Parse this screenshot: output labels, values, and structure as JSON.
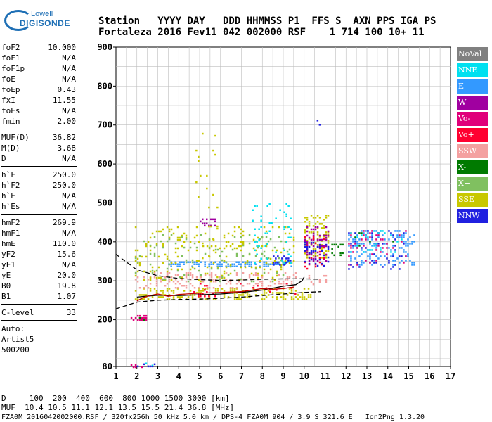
{
  "logo": {
    "brand": "Lowell",
    "sub": "DIGISONDE"
  },
  "header": {
    "line1": "Station   YYYY DAY   DDD HHMMSS P1  FFS S  AXN PPS IGA PS",
    "line2": "Fortaleza 2016 Fev11 042 002000 RSF    1 714 100 10+ 11"
  },
  "params": {
    "group1": [
      {
        "label": "foF2",
        "value": "10.000"
      },
      {
        "label": "foF1",
        "value": "N/A"
      },
      {
        "label": "foF1p",
        "value": "N/A"
      },
      {
        "label": "foE",
        "value": "N/A"
      },
      {
        "label": "foEp",
        "value": "0.43"
      },
      {
        "label": "fxI",
        "value": "11.55"
      },
      {
        "label": "foEs",
        "value": "N/A"
      },
      {
        "label": "fmin",
        "value": "2.00"
      }
    ],
    "group2": [
      {
        "label": "MUF(D)",
        "value": "36.82"
      },
      {
        "label": "M(D)",
        "value": "3.68"
      },
      {
        "label": "D",
        "value": "N/A"
      }
    ],
    "group3": [
      {
        "label": "h`F",
        "value": "250.0"
      },
      {
        "label": "h`F2",
        "value": "250.0"
      },
      {
        "label": "h`E",
        "value": "N/A"
      },
      {
        "label": "h`Es",
        "value": "N/A"
      }
    ],
    "group4": [
      {
        "label": "hmF2",
        "value": "269.9"
      },
      {
        "label": "hmF1",
        "value": "N/A"
      },
      {
        "label": "hmE",
        "value": "110.0"
      },
      {
        "label": "yF2",
        "value": "15.6"
      },
      {
        "label": "yF1",
        "value": "N/A"
      },
      {
        "label": "yE",
        "value": "20.0"
      },
      {
        "label": "B0",
        "value": "19.8"
      },
      {
        "label": "B1",
        "value": "1.07"
      }
    ],
    "group5": [
      {
        "label": "C-level",
        "value": "33"
      }
    ],
    "auto_lines": [
      "Auto:",
      "Artist5",
      "500200"
    ]
  },
  "legend": [
    {
      "label": "NoVal",
      "color": "#808080"
    },
    {
      "label": "NNE",
      "color": "#00e0f0"
    },
    {
      "label": "E",
      "color": "#3399ff"
    },
    {
      "label": "W",
      "color": "#a000a0"
    },
    {
      "label": "Vo-",
      "color": "#e0007a"
    },
    {
      "label": "Vo+",
      "color": "#ff0030"
    },
    {
      "label": "SSW",
      "color": "#f4a0a0"
    },
    {
      "label": "X-",
      "color": "#007a00"
    },
    {
      "label": "X+",
      "color": "#80c060"
    },
    {
      "label": "SSE",
      "color": "#c8c800"
    },
    {
      "label": "NNW",
      "color": "#2020e0"
    }
  ],
  "footer": {
    "line1": "D     100  200  400  600  800 1000 1500 3000 [km]",
    "line2": "MUF  10.4 10.5 11.1 12.1 13.5 15.5 21.4 36.8 [MHz]",
    "line3": "FZA0M_2016042002000.RSF / 320fx256h 50 kHz 5.0 km / DPS-4 FZA0M 904 / 3.9 S 321.6 E   Ion2Png 1.3.20"
  },
  "chart_data": {
    "type": "scatter",
    "xlabel": "",
    "ylabel": "",
    "xlim": [
      1,
      17
    ],
    "ylim": [
      80,
      900
    ],
    "xticks": [
      "1",
      "2",
      "3",
      "4",
      "5",
      "6",
      "7",
      "8",
      "9",
      "10",
      "11",
      "12",
      "13",
      "14",
      "15",
      "16",
      "17"
    ],
    "yticks": [
      "80",
      "200",
      "300",
      "400",
      "500",
      "600",
      "700",
      "800",
      "900"
    ],
    "grid": true,
    "clusters": [
      {
        "x": [
          2.0,
          2.9
        ],
        "y": [
          80,
          88
        ],
        "color": "#2020e0",
        "density": 0.5
      },
      {
        "x": [
          1.6,
          2.3
        ],
        "y": [
          80,
          86
        ],
        "color": "#e0007a",
        "density": 0.4
      },
      {
        "x": [
          2.4,
          2.9
        ],
        "y": [
          84,
          90
        ],
        "color": "#00e0f0",
        "density": 0.3
      },
      {
        "x": [
          1.7,
          2.5
        ],
        "y": [
          196,
          212
        ],
        "color": "#e0007a",
        "density": 0.45
      },
      {
        "x": [
          2.1,
          2.6
        ],
        "y": [
          200,
          212
        ],
        "color": "#007a00",
        "density": 0.25
      },
      {
        "x": [
          1.9,
          10.3
        ],
        "y": [
          250,
          282
        ],
        "color": "#c8c800",
        "density": 0.35
      },
      {
        "x": [
          1.9,
          9.6
        ],
        "y": [
          280,
          322
        ],
        "color": "#f4a0a0",
        "density": 0.25
      },
      {
        "x": [
          4.5,
          9.6
        ],
        "y": [
          262,
          295
        ],
        "color": "#ff0030",
        "density": 0.06
      },
      {
        "x": [
          3.5,
          9.4
        ],
        "y": [
          336,
          350
        ],
        "color": "#3399ff",
        "density": 0.55
      },
      {
        "x": [
          1.9,
          9.5
        ],
        "y": [
          300,
          440
        ],
        "color": "#c8c800",
        "density": 0.1
      },
      {
        "x": [
          1.9,
          9.4
        ],
        "y": [
          300,
          420
        ],
        "color": "#80c060",
        "density": 0.05
      },
      {
        "x": [
          7.5,
          9.4
        ],
        "y": [
          340,
          500
        ],
        "color": "#00e0f0",
        "density": 0.08
      },
      {
        "x": [
          8.5,
          9.4
        ],
        "y": [
          340,
          365
        ],
        "color": "#2020e0",
        "density": 0.3
      },
      {
        "x": [
          5.0,
          5.8
        ],
        "y": [
          440,
          460
        ],
        "color": "#a000a0",
        "density": 0.4
      },
      {
        "x": [
          4.8,
          5.9
        ],
        "y": [
          300,
          680
        ],
        "color": "#c8c800",
        "density": 0.03
      },
      {
        "x": [
          10.0,
          11.2
        ],
        "y": [
          360,
          470
        ],
        "color": "#c8c800",
        "density": 0.35
      },
      {
        "x": [
          10.0,
          11.2
        ],
        "y": [
          350,
          440
        ],
        "color": "#a000a0",
        "density": 0.25
      },
      {
        "x": [
          10.0,
          11.0
        ],
        "y": [
          330,
          420
        ],
        "color": "#ff0030",
        "density": 0.2
      },
      {
        "x": [
          10.0,
          11.2
        ],
        "y": [
          340,
          400
        ],
        "color": "#2020e0",
        "density": 0.25
      },
      {
        "x": [
          10.2,
          11.1
        ],
        "y": [
          290,
          315
        ],
        "color": "#f4a0a0",
        "density": 0.25
      },
      {
        "x": [
          10.7,
          11.0
        ],
        "y": [
          290,
          310
        ],
        "color": "#ff0030",
        "density": 0.2
      },
      {
        "x": [
          11.3,
          11.9
        ],
        "y": [
          365,
          395
        ],
        "color": "#007a00",
        "density": 0.4
      },
      {
        "x": [
          12.1,
          15.3
        ],
        "y": [
          340,
          430
        ],
        "color": "#3399ff",
        "density": 0.25
      },
      {
        "x": [
          12.1,
          14.9
        ],
        "y": [
          340,
          430
        ],
        "color": "#e0007a",
        "density": 0.08
      },
      {
        "x": [
          12.1,
          14.9
        ],
        "y": [
          330,
          430
        ],
        "color": "#2020e0",
        "density": 0.06
      },
      {
        "x": [
          12.1,
          14.7
        ],
        "y": [
          370,
          430
        ],
        "color": "#00e0f0",
        "density": 0.08
      },
      {
        "x": [
          12.3,
          14.4
        ],
        "y": [
          380,
          430
        ],
        "color": "#007a00",
        "density": 0.04
      },
      {
        "x": [
          10.5,
          10.9
        ],
        "y": [
          700,
          760
        ],
        "color": "#00e0f0",
        "density": 0.08
      },
      {
        "x": [
          10.6,
          10.9
        ],
        "y": [
          700,
          730
        ],
        "color": "#2020e0",
        "density": 0.1
      }
    ],
    "fit_curves": [
      {
        "style": "solid",
        "color": "#000000",
        "x": [
          2.0,
          3.0,
          4.0,
          5.0,
          6.0,
          7.0,
          8.0,
          9.0,
          9.6,
          9.9,
          10.0
        ],
        "y": [
          258,
          263,
          262,
          264,
          266,
          270,
          276,
          286,
          290,
          300,
          310
        ]
      },
      {
        "style": "solid",
        "color": "#c00000",
        "x": [
          2.0,
          2.3,
          2.6,
          3.0,
          3.5,
          4.0,
          5.0,
          6.0,
          7.0,
          7.5,
          8.0,
          8.5,
          9.0,
          9.5
        ],
        "y": [
          248,
          257,
          262,
          266,
          260,
          265,
          268,
          270,
          272,
          276,
          280,
          278,
          280,
          284
        ]
      },
      {
        "style": "dashed",
        "color": "#000000",
        "x": [
          1.0,
          2.0,
          3.0,
          4.0,
          5.0,
          6.0,
          7.0,
          8.0,
          9.0,
          10.0,
          10.8
        ],
        "y": [
          368,
          328,
          313,
          306,
          303,
          301,
          302,
          304,
          305,
          305,
          304
        ]
      },
      {
        "style": "dashed",
        "color": "#000000",
        "x": [
          1.0,
          2.0,
          3.0,
          4.0,
          5.0,
          6.0,
          7.0,
          8.0,
          9.0,
          10.0,
          10.8
        ],
        "y": [
          228,
          245,
          250,
          252,
          253,
          255,
          258,
          262,
          266,
          270,
          272
        ]
      }
    ]
  }
}
